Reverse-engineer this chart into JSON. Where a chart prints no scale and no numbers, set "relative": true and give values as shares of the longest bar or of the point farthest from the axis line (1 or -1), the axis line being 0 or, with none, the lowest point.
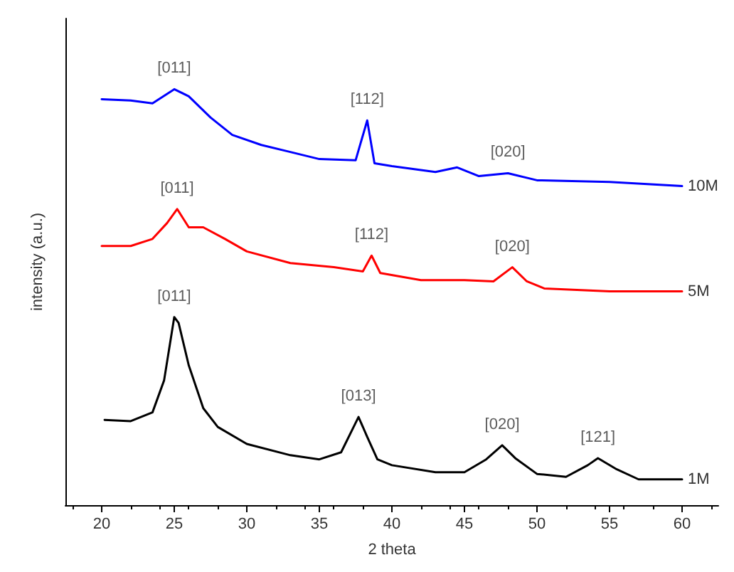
{
  "chart_data": {
    "type": "line",
    "xlabel": "2 theta",
    "ylabel": "intensity (a.u.)",
    "relative": true,
    "xlim": [
      17.5,
      62.5
    ],
    "xticks": [
      20,
      25,
      30,
      35,
      40,
      45,
      50,
      55,
      60
    ],
    "grid": false,
    "legend": false,
    "marker": "none",
    "line_style": "solid",
    "series": [
      {
        "name": "10M",
        "color": "#0000ff",
        "x": [
          20,
          22,
          23.5,
          25,
          26,
          27.5,
          29,
          31,
          33,
          35,
          37.5,
          38.3,
          38.8,
          40,
          43,
          44.5,
          46,
          48,
          50,
          55,
          60
        ],
        "values": [
          0.976,
          0.973,
          0.966,
          1.0,
          0.983,
          0.932,
          0.89,
          0.866,
          0.849,
          0.832,
          0.829,
          0.925,
          0.822,
          0.815,
          0.801,
          0.812,
          0.791,
          0.798,
          0.781,
          0.777,
          0.767
        ]
      },
      {
        "name": "5M",
        "color": "#ff0000",
        "x": [
          20,
          22,
          23.5,
          24.5,
          25.2,
          26,
          27,
          28.5,
          30,
          33,
          36,
          38,
          38.6,
          39.2,
          42,
          45,
          47,
          48.3,
          49.3,
          50.5,
          55,
          60
        ],
        "values": [
          0.623,
          0.623,
          0.64,
          0.678,
          0.712,
          0.668,
          0.668,
          0.64,
          0.61,
          0.582,
          0.572,
          0.562,
          0.6,
          0.558,
          0.541,
          0.541,
          0.538,
          0.572,
          0.538,
          0.521,
          0.514,
          0.514
        ]
      },
      {
        "name": "1M",
        "color": "#000000",
        "x": [
          20.2,
          22,
          23.5,
          24.3,
          25,
          25.3,
          26,
          27,
          28,
          30,
          33,
          35,
          36.5,
          37.7,
          38.3,
          39,
          40,
          43,
          45,
          46.5,
          47.6,
          48.5,
          50,
          52,
          53.5,
          54.2,
          55.5,
          57,
          60
        ],
        "values": [
          0.205,
          0.202,
          0.223,
          0.3,
          0.452,
          0.438,
          0.336,
          0.233,
          0.188,
          0.147,
          0.12,
          0.11,
          0.127,
          0.212,
          0.164,
          0.11,
          0.096,
          0.079,
          0.079,
          0.11,
          0.144,
          0.113,
          0.075,
          0.068,
          0.096,
          0.113,
          0.086,
          0.062,
          0.062
        ]
      }
    ],
    "annotations": [
      {
        "text": "[011]",
        "x": 25,
        "y": 1.0
      },
      {
        "text": "[112]",
        "x": 38.3,
        "y": 0.925
      },
      {
        "text": "[020]",
        "x": 48,
        "y": 0.798
      },
      {
        "text": "[011]",
        "x": 25.2,
        "y": 0.712
      },
      {
        "text": "[112]",
        "x": 38.6,
        "y": 0.6
      },
      {
        "text": "[020]",
        "x": 48.3,
        "y": 0.572
      },
      {
        "text": "[011]",
        "x": 25,
        "y": 0.452
      },
      {
        "text": "[013]",
        "x": 37.7,
        "y": 0.212
      },
      {
        "text": "[020]",
        "x": 47.6,
        "y": 0.144
      },
      {
        "text": "[121]",
        "x": 54.2,
        "y": 0.113
      }
    ]
  }
}
